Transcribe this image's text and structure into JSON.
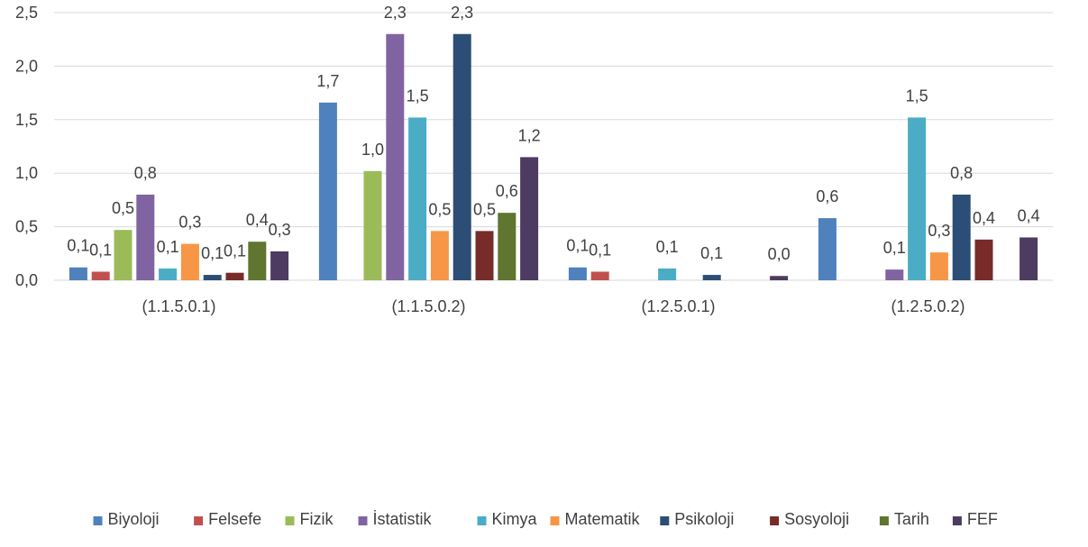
{
  "chart_data": {
    "type": "bar",
    "categories": [
      "(1.1.5.0.1)",
      "(1.1.5.0.2)",
      "(1.2.5.0.1)",
      "(1.2.5.0.2)"
    ],
    "y_ticks": [
      "0,0",
      "0,5",
      "1,0",
      "1,5",
      "2,0",
      "2,5"
    ],
    "ylim": [
      0,
      2.5
    ],
    "grid": true,
    "legend_position": "bottom",
    "series": [
      {
        "name": "Biyoloji",
        "color": "#4f81bd",
        "values": [
          0.12,
          1.66,
          0.12,
          0.58
        ],
        "labels": [
          "0,1",
          "1,7",
          "0,1",
          "0,6"
        ]
      },
      {
        "name": "Felsefe",
        "color": "#c0504d",
        "values": [
          0.08,
          null,
          0.08,
          null
        ],
        "labels": [
          "0,1",
          "",
          "0,1",
          ""
        ]
      },
      {
        "name": "Fizik",
        "color": "#9bbb59",
        "values": [
          0.47,
          1.02,
          null,
          null
        ],
        "labels": [
          "0,5",
          "1,0",
          "",
          ""
        ]
      },
      {
        "name": "İstatistik",
        "color": "#8064a2",
        "values": [
          0.8,
          2.3,
          null,
          0.1
        ],
        "labels": [
          "0,8",
          "2,3",
          "",
          "0,1"
        ]
      },
      {
        "name": "Kimya",
        "color": "#4bacc6",
        "values": [
          0.11,
          1.52,
          0.11,
          1.52
        ],
        "labels": [
          "0,1",
          "1,5",
          "0,1",
          "1,5"
        ]
      },
      {
        "name": "Matematik",
        "color": "#f79646",
        "values": [
          0.34,
          0.46,
          null,
          0.26
        ],
        "labels": [
          "0,3",
          "0,5",
          "",
          "0,3"
        ]
      },
      {
        "name": "Psikoloji",
        "color": "#2c4d75",
        "values": [
          0.05,
          2.3,
          0.05,
          0.8
        ],
        "labels": [
          "0,1",
          "2,3",
          "0,1",
          "0,8"
        ]
      },
      {
        "name": "Sosyoloji",
        "color": "#772c2a",
        "values": [
          0.07,
          0.46,
          null,
          0.38
        ],
        "labels": [
          "0,1",
          "0,5",
          "",
          "0,4"
        ]
      },
      {
        "name": "Tarih",
        "color": "#5f7530",
        "values": [
          0.36,
          0.63,
          null,
          null
        ],
        "labels": [
          "0,4",
          "0,6",
          "",
          ""
        ]
      },
      {
        "name": "FEF",
        "color": "#4d3b62",
        "values": [
          0.27,
          1.15,
          0.04,
          0.4
        ],
        "labels": [
          "0,3",
          "1,2",
          "0,0",
          "0,4"
        ]
      }
    ]
  }
}
